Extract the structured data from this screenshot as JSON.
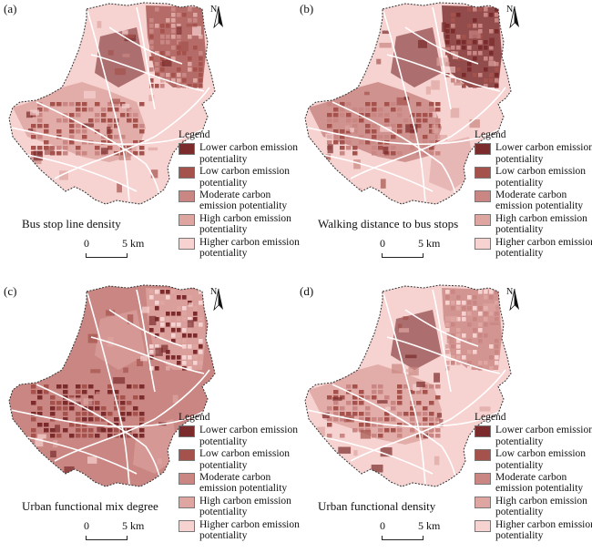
{
  "legend": {
    "title": "Legend",
    "classes": [
      {
        "label": "Lower carbon emission potentiality",
        "color": "#7b2b2b"
      },
      {
        "label": "Low carbon emission potentiality",
        "color": "#a5524d"
      },
      {
        "label": "Moderate carbon emission potentiality",
        "color": "#c98682"
      },
      {
        "label": "High carbon emission potentiality",
        "color": "#dea5a1"
      },
      {
        "label": "Higher carbon emission potentiality",
        "color": "#f6d3d1"
      }
    ]
  },
  "north_label": "N",
  "scale": {
    "zero": "0",
    "distance": "5 km"
  },
  "panels": [
    {
      "label": "(a)",
      "caption": "Bus stop line density",
      "base": 4,
      "west": 3,
      "center": 1,
      "ne": 1
    },
    {
      "label": "(b)",
      "caption": "Walking distance to bus stops",
      "base": 4,
      "west": 2,
      "center": 1,
      "ne": 0
    },
    {
      "label": "(c)",
      "caption": "Urban functional mix degree",
      "base": 2,
      "west": 2,
      "center": 0,
      "ne": 3
    },
    {
      "label": "(d)",
      "caption": "Urban functional density",
      "base": 4,
      "west": 3,
      "center": 1,
      "ne": 2
    }
  ]
}
